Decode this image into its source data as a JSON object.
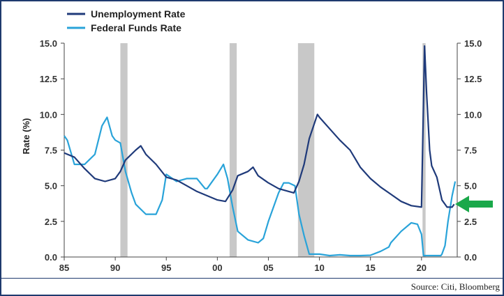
{
  "chart_data": {
    "type": "line",
    "ylabel": "Rate (%)",
    "ylim": [
      0,
      15
    ],
    "yticks": [
      "0.0",
      "2.5",
      "5.0",
      "7.5",
      "10.0",
      "12.5",
      "15.0"
    ],
    "xlim": [
      1985,
      2023.5
    ],
    "xticks": [
      "85",
      "90",
      "95",
      "00",
      "05",
      "10",
      "15",
      "20"
    ],
    "legend_position": "top-left",
    "recessions": [
      [
        1990.5,
        1991.2
      ],
      [
        2001.2,
        2001.9
      ],
      [
        2007.9,
        2009.5
      ],
      [
        2020.1,
        2020.4
      ]
    ],
    "series": [
      {
        "name": "Unemployment Rate",
        "color": "#1f3a7a",
        "x": [
          1985,
          1986,
          1987,
          1988,
          1989,
          1990,
          1990.5,
          1991,
          1992,
          1992.5,
          1993,
          1994,
          1995,
          1996,
          1997,
          1998,
          1999,
          2000,
          2000.8,
          2001.5,
          2002,
          2003,
          2003.5,
          2004,
          2005,
          2006,
          2007,
          2007.5,
          2008,
          2008.5,
          2009,
          2009.8,
          2010,
          2011,
          2012,
          2013,
          2014,
          2015,
          2016,
          2017,
          2018,
          2019,
          2020.0,
          2020.3,
          2020.5,
          2020.8,
          2021,
          2021.5,
          2022,
          2022.5,
          2023,
          2023.2
        ],
        "y": [
          7.3,
          7.0,
          6.2,
          5.5,
          5.3,
          5.5,
          6.0,
          6.8,
          7.5,
          7.8,
          7.2,
          6.5,
          5.6,
          5.4,
          5.0,
          4.6,
          4.3,
          4.0,
          3.9,
          4.7,
          5.7,
          6.0,
          6.3,
          5.7,
          5.2,
          4.8,
          4.6,
          4.5,
          5.3,
          6.5,
          8.3,
          10.0,
          9.8,
          9.0,
          8.2,
          7.5,
          6.3,
          5.5,
          4.9,
          4.4,
          3.9,
          3.6,
          3.5,
          14.8,
          11.5,
          7.5,
          6.4,
          5.6,
          4.0,
          3.5,
          3.5,
          3.7
        ]
      },
      {
        "name": "Federal Funds Rate",
        "color": "#29a3d9",
        "x": [
          1985,
          1985.3,
          1986,
          1987,
          1988,
          1988.7,
          1989.2,
          1989.7,
          1990,
          1990.5,
          1991,
          1991.6,
          1992,
          1993,
          1994,
          1994.6,
          1995,
          1996,
          1997,
          1998,
          1998.8,
          1999,
          2000,
          2000.6,
          2001,
          2001.5,
          2002,
          2003,
          2004,
          2004.5,
          2005,
          2006,
          2006.5,
          2007,
          2007.6,
          2008,
          2008.5,
          2009,
          2010,
          2011,
          2012,
          2013,
          2014,
          2015,
          2016,
          2016.8,
          2017,
          2018,
          2019,
          2019.6,
          2020,
          2020.2,
          2021,
          2021.9,
          2022,
          2022.3,
          2022.6,
          2023,
          2023.3
        ],
        "y": [
          8.5,
          8.2,
          6.5,
          6.5,
          7.2,
          9.2,
          9.8,
          8.5,
          8.2,
          8.0,
          6.0,
          4.5,
          3.7,
          3.0,
          3.0,
          4.0,
          5.8,
          5.3,
          5.5,
          5.5,
          4.8,
          4.8,
          5.8,
          6.5,
          5.5,
          3.5,
          1.8,
          1.2,
          1.0,
          1.3,
          2.5,
          4.5,
          5.2,
          5.2,
          5.0,
          3.0,
          1.5,
          0.2,
          0.2,
          0.1,
          0.15,
          0.1,
          0.1,
          0.12,
          0.4,
          0.7,
          1.0,
          1.8,
          2.4,
          2.3,
          1.6,
          0.1,
          0.1,
          0.1,
          0.2,
          0.8,
          2.5,
          4.3,
          5.3
        ]
      }
    ]
  },
  "source_text": "Source: Citi, Bloomberg",
  "arrow_color": "#1aa84a",
  "recession_color": "#c8c8c8"
}
